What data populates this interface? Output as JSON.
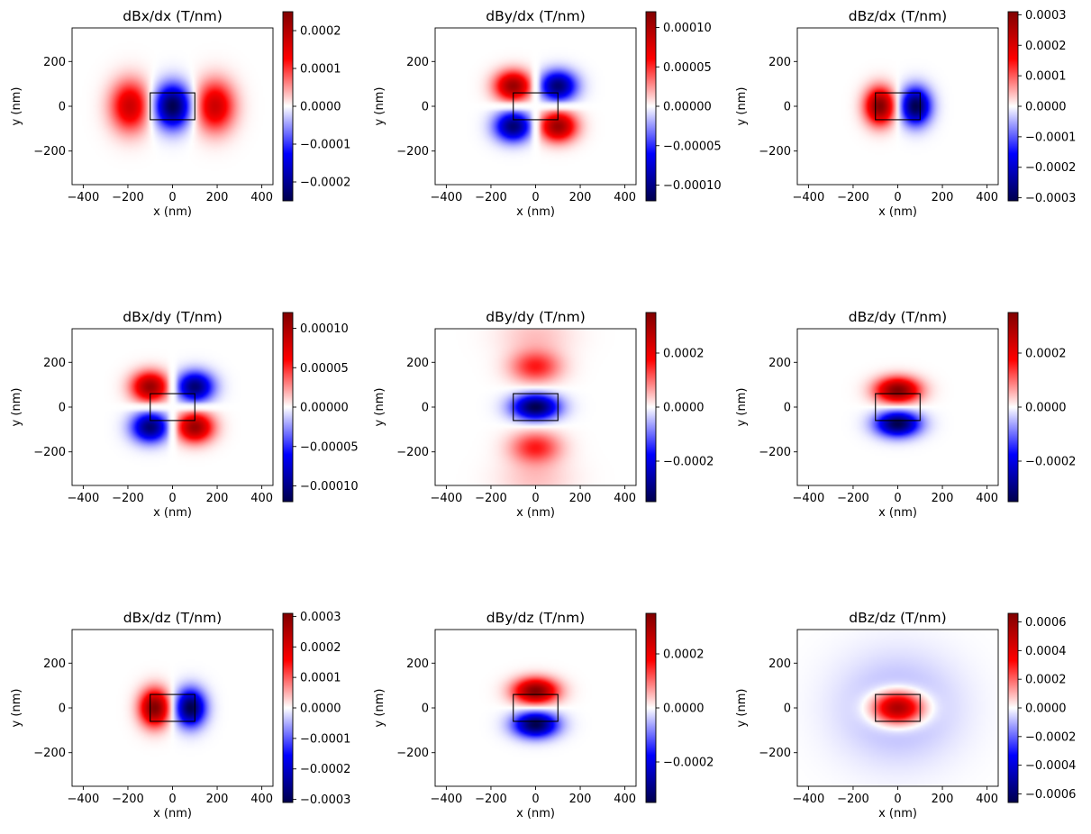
{
  "figure": {
    "panel_count": 9,
    "colormap": "seismic",
    "colormap_stops": [
      "#00004c",
      "#0000ff",
      "#ffffff",
      "#ff0000",
      "#800000"
    ]
  },
  "chart_data": [
    {
      "type": "heatmap",
      "title": "dBx/dx (T/nm)",
      "xlabel": "x (nm)",
      "ylabel": "y (nm)",
      "xlim": [
        -450,
        450
      ],
      "ylim": [
        -350,
        350
      ],
      "xticks": [
        -400,
        -200,
        0,
        200,
        400
      ],
      "yticks": [
        -200,
        0,
        200
      ],
      "magnet_rect": {
        "x": [
          -100,
          100
        ],
        "y": [
          -60,
          60
        ]
      },
      "colorbar": {
        "limits": [
          -0.00025,
          0.00025
        ],
        "ticks": [
          0.0002,
          0.0001,
          0,
          -0.0001,
          -0.0002
        ],
        "ticklabels": [
          "0.0002",
          "0.0001",
          "0.0000",
          "−0.0001",
          "−0.0002"
        ]
      },
      "field_pattern": "dBx_dx"
    },
    {
      "type": "heatmap",
      "title": "dBy/dx (T/nm)",
      "xlabel": "x (nm)",
      "ylabel": "y (nm)",
      "xlim": [
        -450,
        450
      ],
      "ylim": [
        -350,
        350
      ],
      "xticks": [
        -400,
        -200,
        0,
        200,
        400
      ],
      "yticks": [
        -200,
        0,
        200
      ],
      "magnet_rect": {
        "x": [
          -100,
          100
        ],
        "y": [
          -60,
          60
        ]
      },
      "colorbar": {
        "limits": [
          -0.00012,
          0.00012
        ],
        "ticks": [
          0.0001,
          5e-05,
          0,
          -5e-05,
          -0.0001
        ],
        "ticklabels": [
          "0.00010",
          "0.00005",
          "0.00000",
          "−0.00005",
          "−0.00010"
        ]
      },
      "field_pattern": "dBy_dx"
    },
    {
      "type": "heatmap",
      "title": "dBz/dx (T/nm)",
      "xlabel": "x (nm)",
      "ylabel": "y (nm)",
      "xlim": [
        -450,
        450
      ],
      "ylim": [
        -350,
        350
      ],
      "xticks": [
        -400,
        -200,
        0,
        200,
        400
      ],
      "yticks": [
        -200,
        0,
        200
      ],
      "magnet_rect": {
        "x": [
          -100,
          100
        ],
        "y": [
          -60,
          60
        ]
      },
      "colorbar": {
        "limits": [
          -0.00031,
          0.00031
        ],
        "ticks": [
          0.0003,
          0.0002,
          0.0001,
          0,
          -0.0001,
          -0.0002,
          -0.0003
        ],
        "ticklabels": [
          "0.0003",
          "0.0002",
          "0.0001",
          "0.0000",
          "−0.0001",
          "−0.0002",
          "−0.0003"
        ]
      },
      "field_pattern": "dBz_dx"
    },
    {
      "type": "heatmap",
      "title": "dBx/dy (T/nm)",
      "xlabel": "x (nm)",
      "ylabel": "y (nm)",
      "xlim": [
        -450,
        450
      ],
      "ylim": [
        -350,
        350
      ],
      "xticks": [
        -400,
        -200,
        0,
        200,
        400
      ],
      "yticks": [
        -200,
        0,
        200
      ],
      "magnet_rect": {
        "x": [
          -100,
          100
        ],
        "y": [
          -60,
          60
        ]
      },
      "colorbar": {
        "limits": [
          -0.00012,
          0.00012
        ],
        "ticks": [
          0.0001,
          5e-05,
          0,
          -5e-05,
          -0.0001
        ],
        "ticklabels": [
          "0.00010",
          "0.00005",
          "0.00000",
          "−0.00005",
          "−0.00010"
        ]
      },
      "field_pattern": "dBx_dy"
    },
    {
      "type": "heatmap",
      "title": "dBy/dy (T/nm)",
      "xlabel": "x (nm)",
      "ylabel": "y (nm)",
      "xlim": [
        -450,
        450
      ],
      "ylim": [
        -350,
        350
      ],
      "xticks": [
        -400,
        -200,
        0,
        200,
        400
      ],
      "yticks": [
        -200,
        0,
        200
      ],
      "magnet_rect": {
        "x": [
          -100,
          100
        ],
        "y": [
          -60,
          60
        ]
      },
      "colorbar": {
        "limits": [
          -0.00035,
          0.00035
        ],
        "ticks": [
          0.0002,
          0,
          -0.0002
        ],
        "ticklabels": [
          "0.0002",
          "0.0000",
          "−0.0002"
        ]
      },
      "field_pattern": "dBy_dy"
    },
    {
      "type": "heatmap",
      "title": "dBz/dy (T/nm)",
      "xlabel": "x (nm)",
      "ylabel": "y (nm)",
      "xlim": [
        -450,
        450
      ],
      "ylim": [
        -350,
        350
      ],
      "xticks": [
        -400,
        -200,
        0,
        200,
        400
      ],
      "yticks": [
        -200,
        0,
        200
      ],
      "magnet_rect": {
        "x": [
          -100,
          100
        ],
        "y": [
          -60,
          60
        ]
      },
      "colorbar": {
        "limits": [
          -0.00035,
          0.00035
        ],
        "ticks": [
          0.0002,
          0,
          -0.0002
        ],
        "ticklabels": [
          "0.0002",
          "0.0000",
          "−0.0002"
        ]
      },
      "field_pattern": "dBz_dy"
    },
    {
      "type": "heatmap",
      "title": "dBx/dz (T/nm)",
      "xlabel": "x (nm)",
      "ylabel": "y (nm)",
      "xlim": [
        -450,
        450
      ],
      "ylim": [
        -350,
        350
      ],
      "xticks": [
        -400,
        -200,
        0,
        200,
        400
      ],
      "yticks": [
        -200,
        0,
        200
      ],
      "magnet_rect": {
        "x": [
          -100,
          100
        ],
        "y": [
          -60,
          60
        ]
      },
      "colorbar": {
        "limits": [
          -0.00031,
          0.00031
        ],
        "ticks": [
          0.0003,
          0.0002,
          0.0001,
          0,
          -0.0001,
          -0.0002,
          -0.0003
        ],
        "ticklabels": [
          "0.0003",
          "0.0002",
          "0.0001",
          "0.0000",
          "−0.0001",
          "−0.0002",
          "−0.0003"
        ]
      },
      "field_pattern": "dBx_dz"
    },
    {
      "type": "heatmap",
      "title": "dBy/dz (T/nm)",
      "xlabel": "x (nm)",
      "ylabel": "y (nm)",
      "xlim": [
        -450,
        450
      ],
      "ylim": [
        -350,
        350
      ],
      "xticks": [
        -400,
        -200,
        0,
        200,
        400
      ],
      "yticks": [
        -200,
        0,
        200
      ],
      "magnet_rect": {
        "x": [
          -100,
          100
        ],
        "y": [
          -60,
          60
        ]
      },
      "colorbar": {
        "limits": [
          -0.00035,
          0.00035
        ],
        "ticks": [
          0.0002,
          0,
          -0.0002
        ],
        "ticklabels": [
          "0.0002",
          "0.0000",
          "−0.0002"
        ]
      },
      "field_pattern": "dBy_dz"
    },
    {
      "type": "heatmap",
      "title": "dBz/dz (T/nm)",
      "xlabel": "x (nm)",
      "ylabel": "y (nm)",
      "xlim": [
        -450,
        450
      ],
      "ylim": [
        -350,
        350
      ],
      "xticks": [
        -400,
        -200,
        0,
        200,
        400
      ],
      "yticks": [
        -200,
        0,
        200
      ],
      "magnet_rect": {
        "x": [
          -100,
          100
        ],
        "y": [
          -60,
          60
        ]
      },
      "colorbar": {
        "limits": [
          -0.00066,
          0.00066
        ],
        "ticks": [
          0.0006,
          0.0004,
          0.0002,
          0,
          -0.0002,
          -0.0004,
          -0.0006
        ],
        "ticklabels": [
          "0.0006",
          "0.0004",
          "0.0002",
          "0.0000",
          "−0.0002",
          "−0.0004",
          "−0.0006"
        ]
      },
      "field_pattern": "dBz_dz"
    }
  ]
}
